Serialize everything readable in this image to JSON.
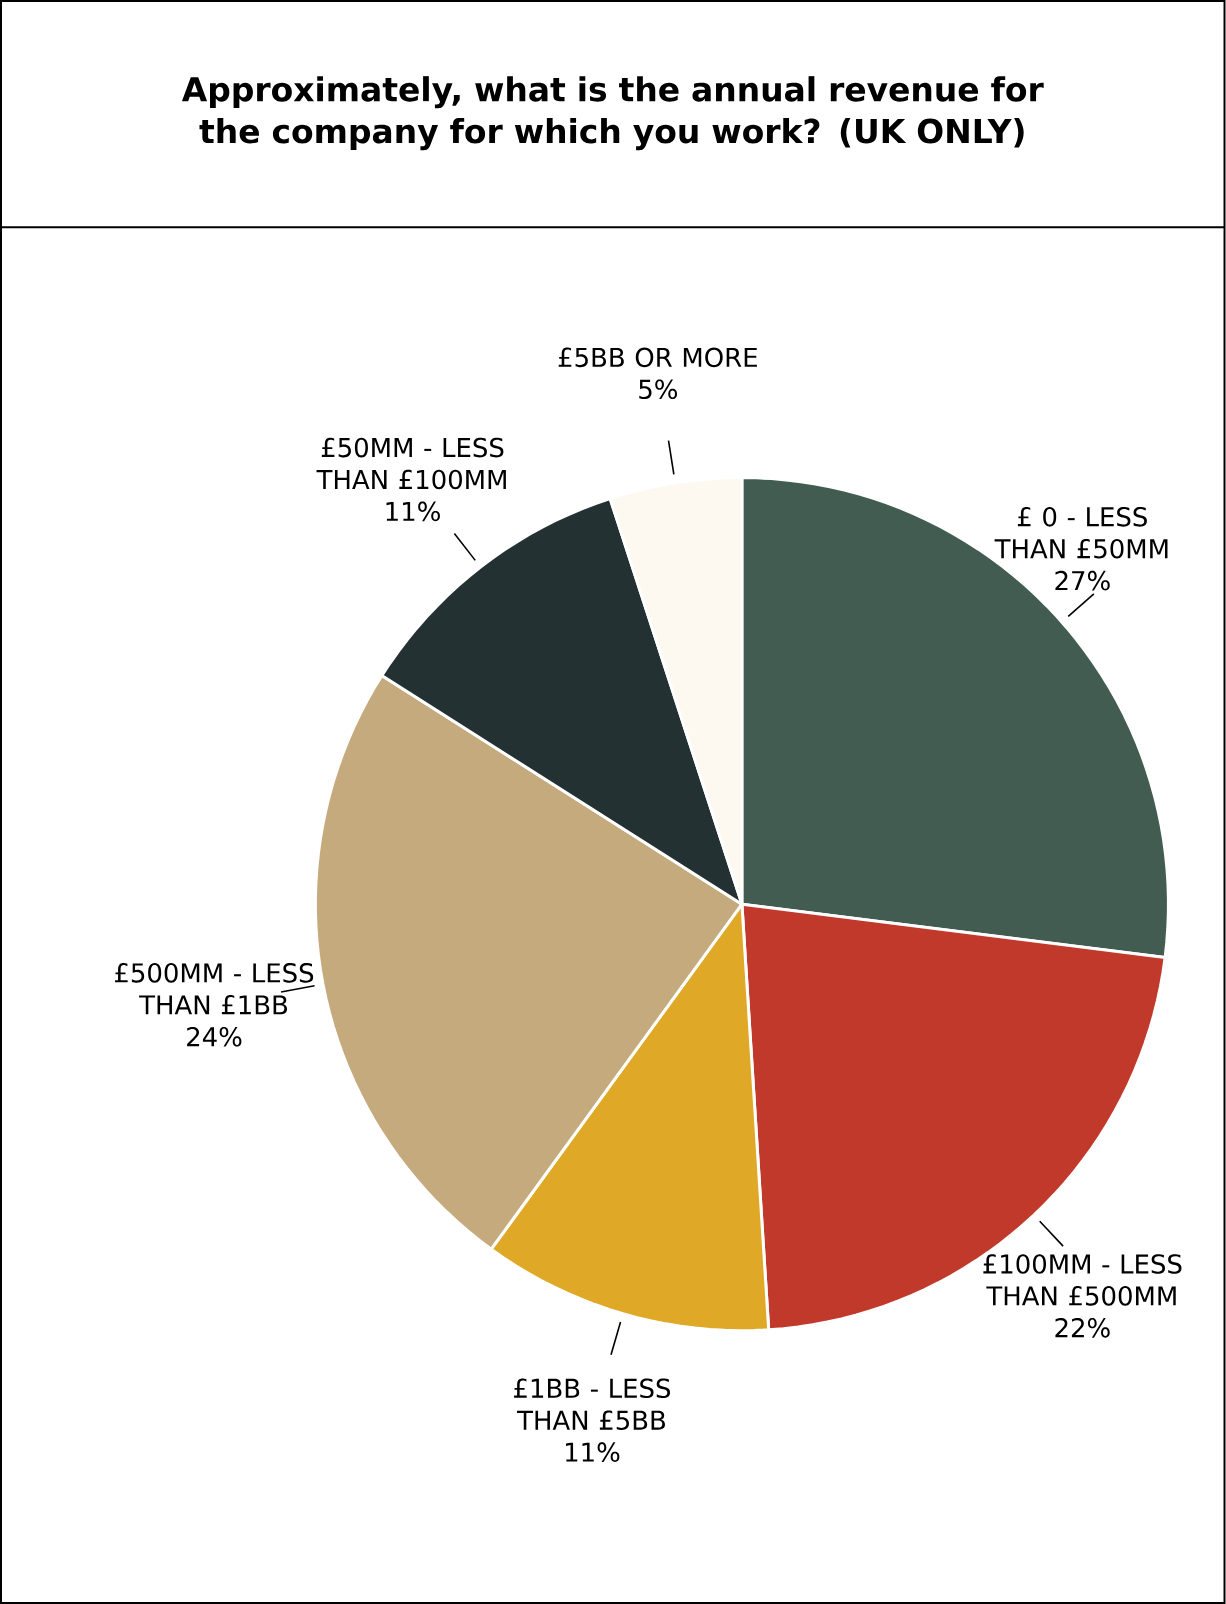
{
  "chart_data": {
    "type": "pie",
    "title": "Approximately, what is the annual revenue for the company for which you work? (UK ONLY)",
    "categories": [
      "£ 0 - LESS THAN £50MM",
      "£100MM - LESS THAN £500MM",
      "£1BB - LESS THAN £5BB",
      "£500MM - LESS THAN £1BB",
      "£50MM - LESS THAN £100MM",
      "£5BB OR MORE"
    ],
    "values": [
      27,
      22,
      11,
      24,
      11,
      5
    ],
    "value_labels": [
      "27%",
      "22%",
      "11%",
      "24%",
      "11%",
      "5%"
    ],
    "colors": [
      "#435c51",
      "#c0392b",
      "#dfa927",
      "#c5aa7d",
      "#243133",
      "#fdf8f0"
    ]
  }
}
